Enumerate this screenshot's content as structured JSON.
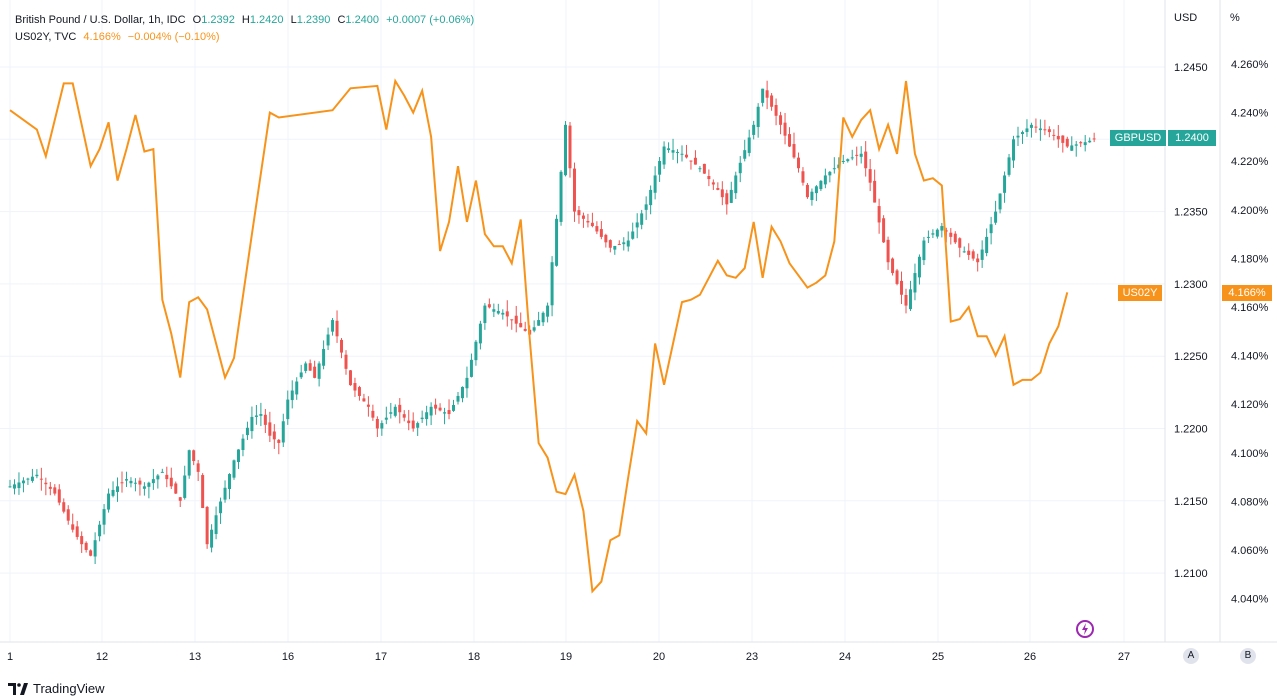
{
  "header": {
    "symbol_name": "British Pound / U.S. Dollar, 1h, IDC",
    "o_label": "O",
    "o_value": "1.2392",
    "h_label": "H",
    "h_value": "1.2420",
    "l_label": "L",
    "l_value": "1.2390",
    "c_label": "C",
    "c_value": "1.2400",
    "change": "+0.0007 (+0.06%)",
    "compare_symbol": "US02Y, TVC",
    "compare_value": "4.166%",
    "compare_change": "−0.004% (−0.10%)"
  },
  "axis": {
    "left_unit": "USD",
    "right_unit": "%"
  },
  "tags": {
    "gbpusd_label": "GBPUSD",
    "gbpusd_price": "1.2400",
    "us02y_label": "US02Y",
    "us02y_price": "4.166%"
  },
  "scale_buttons": {
    "a": "A",
    "b": "B"
  },
  "footer": {
    "brand": "TradingView"
  },
  "colors": {
    "up": "#26a69a",
    "down": "#ef5350",
    "us02y": "#f7931a",
    "grid": "#f0f3fa"
  },
  "chart_data": {
    "type": "line",
    "series": [
      {
        "name": "GBPUSD",
        "kind": "candlestick-approx",
        "axis": "left",
        "y_ticks": [
          "1.2450",
          "1.2400",
          "1.2350",
          "1.2300",
          "1.2250",
          "1.2200",
          "1.2150",
          "1.2100"
        ],
        "points": [
          [
            0,
            1.216
          ],
          [
            3,
            1.2168
          ],
          [
            5,
            1.2155
          ],
          [
            7,
            1.213
          ],
          [
            8,
            1.212
          ],
          [
            9,
            1.2112
          ],
          [
            11,
            1.2155
          ],
          [
            13,
            1.2165
          ],
          [
            15,
            1.216
          ],
          [
            17,
            1.217
          ],
          [
            19,
            1.215
          ],
          [
            20,
            1.2185
          ],
          [
            21,
            1.217
          ],
          [
            22,
            1.212
          ],
          [
            23,
            1.214
          ],
          [
            25,
            1.2178
          ],
          [
            27,
            1.2208
          ],
          [
            28,
            1.221
          ],
          [
            29,
            1.2195
          ],
          [
            30,
            1.219
          ],
          [
            31,
            1.222
          ],
          [
            33,
            1.2245
          ],
          [
            34,
            1.2235
          ],
          [
            36,
            1.2275
          ],
          [
            38,
            1.223
          ],
          [
            40,
            1.2215
          ],
          [
            41,
            1.22
          ],
          [
            43,
            1.2215
          ],
          [
            45,
            1.22
          ],
          [
            47,
            1.2215
          ],
          [
            49,
            1.221
          ],
          [
            51,
            1.2235
          ],
          [
            53,
            1.2285
          ],
          [
            55,
            1.228
          ],
          [
            57,
            1.227
          ],
          [
            58,
            1.2265
          ],
          [
            60,
            1.2285
          ],
          [
            61,
            1.2345
          ],
          [
            62,
            1.241
          ],
          [
            63,
            1.235
          ],
          [
            65,
            1.234
          ],
          [
            67,
            1.2325
          ],
          [
            69,
            1.233
          ],
          [
            71,
            1.2355
          ],
          [
            73,
            1.2395
          ],
          [
            75,
            1.239
          ],
          [
            77,
            1.238
          ],
          [
            79,
            1.2365
          ],
          [
            80,
            1.2355
          ],
          [
            81,
            1.2375
          ],
          [
            83,
            1.241
          ],
          [
            84,
            1.2435
          ],
          [
            86,
            1.241
          ],
          [
            88,
            1.238
          ],
          [
            89,
            1.236
          ],
          [
            91,
            1.2375
          ],
          [
            93,
            1.2385
          ],
          [
            95,
            1.239
          ],
          [
            96,
            1.237
          ],
          [
            98,
            1.2315
          ],
          [
            100,
            1.2285
          ],
          [
            102,
            1.233
          ],
          [
            104,
            1.234
          ],
          [
            106,
            1.2325
          ],
          [
            108,
            1.2315
          ],
          [
            110,
            1.235
          ],
          [
            112,
            1.24
          ],
          [
            114,
            1.241
          ],
          [
            116,
            1.2405
          ],
          [
            118,
            1.2395
          ],
          [
            120,
            1.2398
          ],
          [
            121,
            1.24
          ]
        ]
      },
      {
        "name": "US02Y",
        "axis": "right",
        "y_ticks": [
          "4.260%",
          "4.240%",
          "4.220%",
          "4.200%",
          "4.180%",
          "4.160%",
          "4.140%",
          "4.120%",
          "4.100%",
          "4.080%",
          "4.060%",
          "4.040%"
        ],
        "points": [
          [
            0,
            4.241
          ],
          [
            3,
            4.233
          ],
          [
            4,
            4.222
          ],
          [
            6,
            4.252
          ],
          [
            7,
            4.252
          ],
          [
            8,
            4.235
          ],
          [
            9,
            4.218
          ],
          [
            10,
            4.225
          ],
          [
            11,
            4.236
          ],
          [
            12,
            4.212
          ],
          [
            13,
            4.225
          ],
          [
            14,
            4.239
          ],
          [
            15,
            4.224
          ],
          [
            16,
            4.225
          ],
          [
            17,
            4.163
          ],
          [
            18,
            4.149
          ],
          [
            19,
            4.131
          ],
          [
            20,
            4.162
          ],
          [
            21,
            4.164
          ],
          [
            22,
            4.159
          ],
          [
            24,
            4.131
          ],
          [
            25,
            4.139
          ],
          [
            27,
            4.19
          ],
          [
            29,
            4.24
          ],
          [
            30,
            4.238
          ],
          [
            36,
            4.241
          ],
          [
            38,
            4.25
          ],
          [
            41,
            4.251
          ],
          [
            42,
            4.233
          ],
          [
            43,
            4.253
          ],
          [
            44,
            4.247
          ],
          [
            45,
            4.24
          ],
          [
            46,
            4.249
          ],
          [
            47,
            4.23
          ],
          [
            48,
            4.183
          ],
          [
            49,
            4.195
          ],
          [
            50,
            4.218
          ],
          [
            51,
            4.195
          ],
          [
            52,
            4.212
          ],
          [
            53,
            4.19
          ],
          [
            54,
            4.185
          ],
          [
            55,
            4.185
          ],
          [
            56,
            4.178
          ],
          [
            57,
            4.196
          ],
          [
            58,
            4.147
          ],
          [
            59,
            4.104
          ],
          [
            60,
            4.098
          ],
          [
            61,
            4.084
          ],
          [
            62,
            4.083
          ],
          [
            63,
            4.091
          ],
          [
            64,
            4.076
          ],
          [
            65,
            4.043
          ],
          [
            66,
            4.047
          ],
          [
            67,
            4.064
          ],
          [
            68,
            4.066
          ],
          [
            69,
            4.09
          ],
          [
            70,
            4.113
          ],
          [
            71,
            4.108
          ],
          [
            72,
            4.145
          ],
          [
            73,
            4.128
          ],
          [
            74,
            4.145
          ],
          [
            75,
            4.162
          ],
          [
            76,
            4.163
          ],
          [
            77,
            4.165
          ],
          [
            78,
            4.172
          ],
          [
            79,
            4.179
          ],
          [
            80,
            4.173
          ],
          [
            81,
            4.172
          ],
          [
            82,
            4.176
          ],
          [
            83,
            4.195
          ],
          [
            84,
            4.172
          ],
          [
            85,
            4.193
          ],
          [
            86,
            4.187
          ],
          [
            87,
            4.178
          ],
          [
            89,
            4.168
          ],
          [
            90,
            4.17
          ],
          [
            91,
            4.173
          ],
          [
            92,
            4.187
          ],
          [
            93,
            4.238
          ],
          [
            94,
            4.23
          ],
          [
            95,
            4.237
          ],
          [
            96,
            4.241
          ],
          [
            97,
            4.225
          ],
          [
            98,
            4.235
          ],
          [
            99,
            4.223
          ],
          [
            100,
            4.253
          ],
          [
            101,
            4.223
          ],
          [
            102,
            4.212
          ],
          [
            103,
            4.213
          ],
          [
            104,
            4.21
          ],
          [
            105,
            4.154
          ],
          [
            106,
            4.155
          ],
          [
            107,
            4.16
          ],
          [
            108,
            4.148
          ],
          [
            109,
            4.148
          ],
          [
            110,
            4.14
          ],
          [
            111,
            4.148
          ],
          [
            112,
            4.128
          ],
          [
            113,
            4.13
          ],
          [
            114,
            4.13
          ],
          [
            115,
            4.133
          ],
          [
            116,
            4.145
          ],
          [
            117,
            4.152
          ],
          [
            118,
            4.166
          ]
        ]
      }
    ],
    "x_tick_labels": [
      "1",
      "12",
      "13",
      "16",
      "17",
      "18",
      "19",
      "20",
      "23",
      "24",
      "25",
      "26",
      "27"
    ]
  }
}
